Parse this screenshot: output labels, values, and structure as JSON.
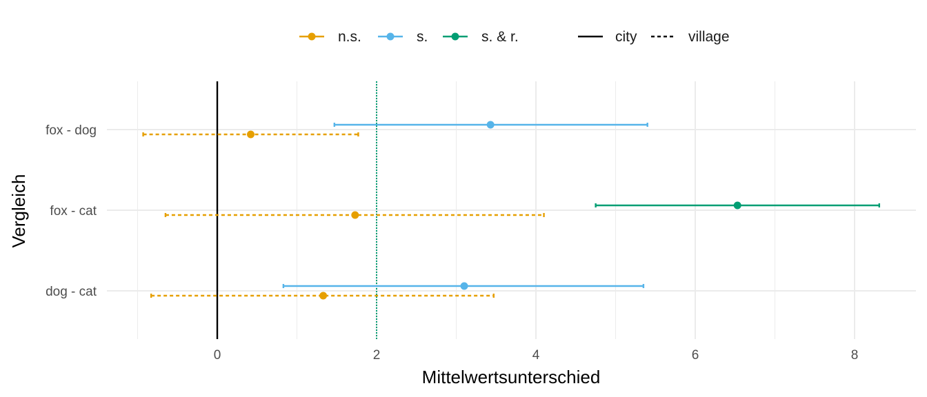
{
  "colors": {
    "n.s.": "#E69F00",
    "s.": "#56B4E9",
    "s. & r.": "#009E73",
    "grid": "#EBEBEB",
    "zero_line": "#000000",
    "reference_line": "#009E73"
  },
  "legend": {
    "significance": [
      "n.s.",
      "s.",
      "s. & r."
    ],
    "linetype": [
      "city",
      "village"
    ]
  },
  "chart_data": {
    "type": "errorbar",
    "xlabel": "Mittelwertsunterschied",
    "ylabel": "Vergleich",
    "xlim": [
      -1.0,
      8.3
    ],
    "x_ticks": [
      0,
      2,
      4,
      6,
      8
    ],
    "categories": [
      "dog - cat",
      "fox - cat",
      "fox - dog"
    ],
    "grid": true,
    "legend_position": "top",
    "reference_lines": [
      {
        "x": 0,
        "style": "solid",
        "color": "#000000"
      },
      {
        "x": 2,
        "style": "dotted",
        "color": "#009E73"
      }
    ],
    "points": [
      {
        "category": "fox - dog",
        "group": "city",
        "significance": "s.",
        "estimate": 3.43,
        "lower": 1.47,
        "upper": 5.4
      },
      {
        "category": "fox - dog",
        "group": "village",
        "significance": "n.s.",
        "estimate": 0.42,
        "lower": -0.93,
        "upper": 1.77
      },
      {
        "category": "fox - cat",
        "group": "city",
        "significance": "s. & r.",
        "estimate": 6.53,
        "lower": 4.75,
        "upper": 8.31
      },
      {
        "category": "fox - cat",
        "group": "village",
        "significance": "n.s.",
        "estimate": 1.73,
        "lower": -0.65,
        "upper": 4.1
      },
      {
        "category": "dog - cat",
        "group": "city",
        "significance": "s.",
        "estimate": 3.1,
        "lower": 0.83,
        "upper": 5.35
      },
      {
        "category": "dog - cat",
        "group": "village",
        "significance": "n.s.",
        "estimate": 1.33,
        "lower": -0.83,
        "upper": 3.47
      }
    ]
  }
}
